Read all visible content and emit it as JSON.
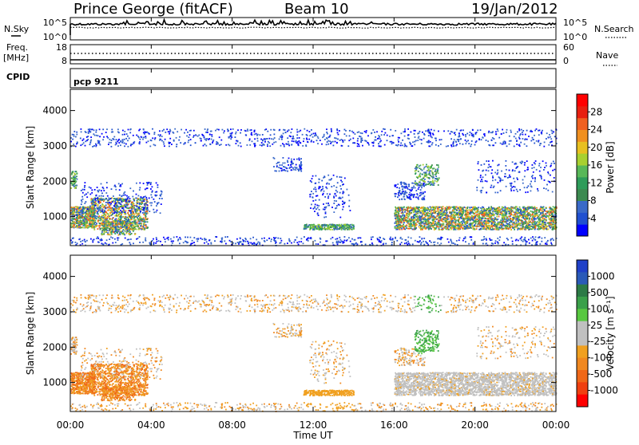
{
  "header": {
    "station": "Prince George (fitACF)",
    "beam": "Beam 10",
    "date": "19/Jan/2012"
  },
  "top_panels": {
    "nsky_label": "N.Sky",
    "nsearch_label": "N.Search",
    "noise_ticks_left": [
      "10^5",
      "10^0"
    ],
    "noise_ticks_right": [
      "10^5",
      "10^0"
    ],
    "freq_label_1": "Freq.",
    "freq_label_2": "[MHz]",
    "freq_ticks": [
      "18",
      "8"
    ],
    "nave_label": "Nave",
    "nave_ticks": [
      "60",
      "0"
    ],
    "cpid_label": "CPID",
    "cpid_value": "pcp 9211"
  },
  "chart_data": [
    {
      "type": "heatmap",
      "quantity": "Power",
      "ylabel": "Slant Range [km]",
      "yticks": [
        1000,
        2000,
        3000,
        4000
      ],
      "ylim": [
        180,
        4600
      ],
      "xlim": [
        0,
        24
      ],
      "colorbar_label": "Power [dB]",
      "colorbar_ticks": [
        "4",
        "8",
        "12",
        "16",
        "20",
        "24",
        "28"
      ],
      "colorbar_colors": [
        "#0000ff",
        "#2050d0",
        "#3a6ac8",
        "#3c8a50",
        "#2e9c5a",
        "#58b858",
        "#a8d030",
        "#e8c020",
        "#f09020",
        "#f06020",
        "#e82010",
        "#ff0000"
      ]
    },
    {
      "type": "heatmap",
      "quantity": "Velocity",
      "ylabel": "Slant Range [km]",
      "yticks": [
        1000,
        2000,
        3000,
        4000
      ],
      "ylim": [
        180,
        4600
      ],
      "xlim": [
        0,
        24
      ],
      "colorbar_label": "Velocity  [m s⁻¹]",
      "colorbar_ticks": [
        "1000",
        "500",
        "100",
        "25",
        "-25",
        "-100",
        "-500",
        "-1000"
      ],
      "colorbar_colors": [
        "#2040c8",
        "#2a5ab8",
        "#2c7a46",
        "#3aa04a",
        "#58c840",
        "#c0c0c0",
        "#c0c0c0",
        "#f0a020",
        "#f08820",
        "#f06818",
        "#f04010",
        "#ff0000"
      ]
    }
  ],
  "x_axis": {
    "ticks": [
      "00:00",
      "04:00",
      "08:00",
      "12:00",
      "16:00",
      "20:00",
      "00:00"
    ],
    "label": "Time UT"
  }
}
